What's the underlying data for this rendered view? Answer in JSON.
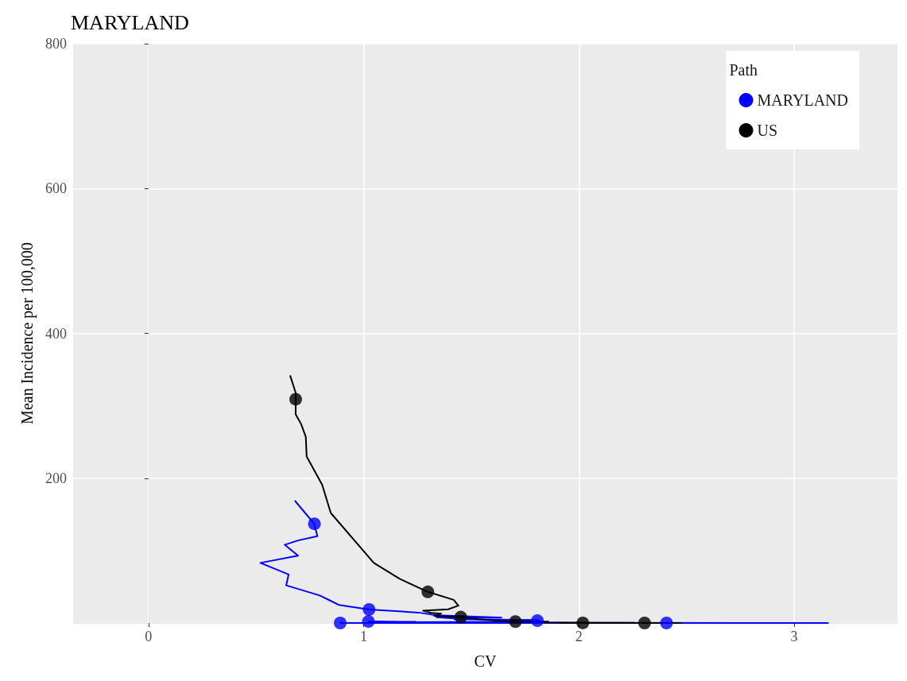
{
  "chart_data": {
    "type": "line",
    "title": "MARYLAND",
    "xlabel": "CV",
    "ylabel": "Mean Incidence per 100,000",
    "legend_title": "Path",
    "legend": "top right",
    "grid": true,
    "xlim": [
      -0.35,
      3.48
    ],
    "xticks": [
      0,
      1,
      2,
      3
    ],
    "ylim": [
      0,
      800
    ],
    "yticks": [
      200,
      400,
      600,
      800
    ],
    "series": [
      {
        "name": "MARYLAND",
        "color": "#0000ff",
        "x": [
          0.68,
          0.77,
          0.785,
          0.695,
          0.633,
          0.695,
          0.52,
          0.651,
          0.64,
          0.796,
          0.844,
          0.884,
          1.025,
          1.255,
          1.338,
          1.64,
          1.338,
          1.422,
          1.422,
          1.807,
          1.807,
          1.833,
          1.64,
          1.058,
          1.167,
          1.24,
          1.022,
          1.24,
          1.458,
          1.513,
          1.567,
          2.767,
          1.022,
          0.891,
          2.549,
          3.16
        ],
        "values": [
          169,
          137,
          120,
          114,
          108,
          93,
          83,
          67,
          52,
          38,
          31,
          25,
          18.6,
          14.4,
          10.6,
          7.4,
          7.9,
          6.4,
          5.2,
          4.2,
          3.2,
          1.9,
          1.6,
          0.9,
          1.0,
          1.6,
          2.1,
          1.4,
          1.1,
          0.63,
          0.37,
          0.12,
          0.05,
          0.05,
          0.01,
          0.01
        ]
      },
      {
        "type": "scatter",
        "color": "#0000ff",
        "x": [
          0.771,
          1.025,
          1.807,
          1.022,
          0.891,
          2.407
        ],
        "values": [
          137,
          18.6,
          3.2,
          2.1,
          0.05,
          0.02
        ]
      },
      {
        "name": "US",
        "color": "#000000",
        "x": [
          0.658,
          0.684,
          0.684,
          0.709,
          0.731,
          0.735,
          0.807,
          0.847,
          1.047,
          1.167,
          1.298,
          1.418,
          1.44,
          1.393,
          1.276,
          1.313,
          1.36,
          1.327,
          1.451,
          1.531,
          1.604,
          1.705,
          1.858,
          1.822,
          1.931,
          2.076,
          2.258,
          2.258,
          2.018,
          1.913,
          2.113,
          2.305,
          2.476
        ],
        "values": [
          342,
          318,
          288,
          275,
          257,
          230,
          191,
          152,
          83,
          61,
          43,
          32,
          24,
          19,
          17,
          14,
          13,
          10,
          8.1,
          5.3,
          3.7,
          1.9,
          1.9,
          0.76,
          0.57,
          0.41,
          0.28,
          0.12,
          0.07,
          0.09,
          0.04,
          0.04,
          0.01
        ]
      },
      {
        "type": "scatter",
        "color": "#000000",
        "x": [
          0.684,
          1.298,
          1.451,
          1.705,
          2.018,
          2.305
        ],
        "values": [
          309,
          43,
          8.1,
          1.9,
          0.07,
          0.04
        ]
      }
    ]
  }
}
